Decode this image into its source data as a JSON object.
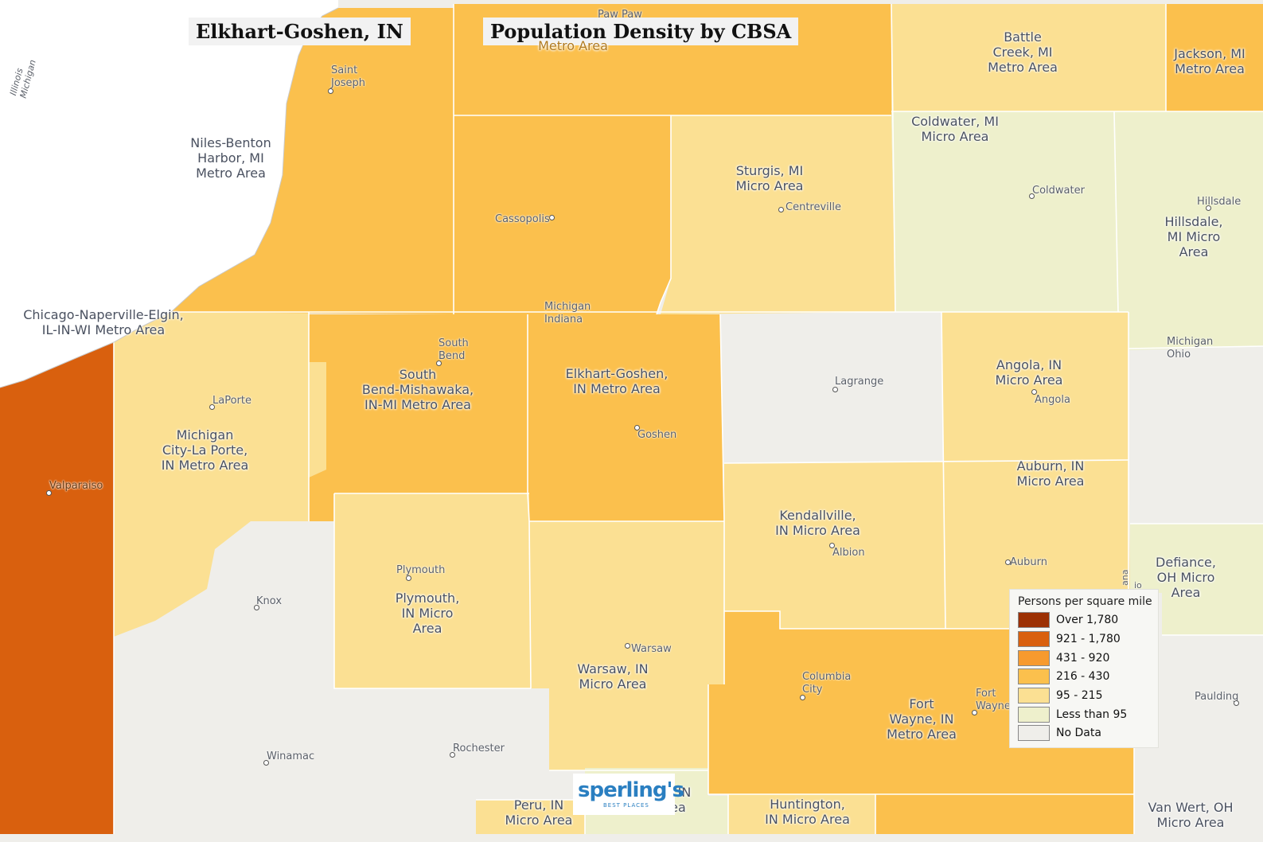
{
  "titles": {
    "region": "Elkhart-Goshen, IN",
    "map": "Population Density by CBSA"
  },
  "colors": {
    "over_1780": "#9c3003",
    "d921_1780": "#d9600e",
    "d431_920": "#f79a2e",
    "d216_430": "#fbc04d",
    "d95_215": "#fbe093",
    "lt95": "#eef0cc",
    "nodata": "#efeeea",
    "lake": "#ffffff"
  },
  "legend": {
    "title": "Persons per square mile",
    "items": [
      {
        "label": "Over 1,780",
        "color": "#9c3003"
      },
      {
        "label": "921 - 1,780",
        "color": "#d9600e"
      },
      {
        "label": "431 - 920",
        "color": "#f79a2e"
      },
      {
        "label": "216 - 430",
        "color": "#fbc04d"
      },
      {
        "label": "95 - 215",
        "color": "#fbe093"
      },
      {
        "label": "Less than 95",
        "color": "#eef0cc"
      },
      {
        "label": "No Data",
        "color": "#efeeea"
      }
    ]
  },
  "areas": {
    "niles": "Niles-Benton\nHarbor, MI\nMetro Area",
    "chicago": "Chicago-Naperville-Elgin,\nIL-IN-WI Metro Area",
    "battle_creek": "Battle\nCreek, MI\nMetro Area",
    "jackson": "Jackson, MI\nMetro Area",
    "coldwater": "Coldwater, MI\nMicro Area",
    "sturgis": "Sturgis, MI\nMicro Area",
    "hillsdale": "Hillsdale,\nMI Micro\nArea",
    "south_bend": "South\nBend-Mishawaka,\nIN-MI Metro Area",
    "elkhart": "Elkhart-Goshen,\nIN Metro Area",
    "angola": "Angola, IN\nMicro Area",
    "michigan_city": "Michigan\nCity-La Porte,\nIN Metro Area",
    "auburn": "Auburn, IN\nMicro Area",
    "kendallville": "Kendallville,\nIN Micro Area",
    "defiance": "Defiance,\nOH Micro\nArea",
    "plymouth": "Plymouth,\nIN Micro\nArea",
    "warsaw": "Warsaw, IN\nMicro Area",
    "fort_wayne": "Fort\nWayne, IN\nMetro Area",
    "peru": "Peru, IN\nMicro Area",
    "huntington": "Huntington,\nIN Micro Area",
    "van_wert": "Van Wert, OH\nMicro Area",
    "wabash_partial": "IN",
    "wabash_partial2": "ea",
    "kalamazoo_partial": "Metro Area"
  },
  "cities": {
    "paw_paw": "Paw Paw",
    "saint_joseph": "Saint\nJoseph",
    "cassopolis": "Cassopolis",
    "centreville": "Centreville",
    "coldwater": "Coldwater",
    "hillsdale": "Hillsdale",
    "south_bend": "South\nBend",
    "laporte": "LaPorte",
    "goshen": "Goshen",
    "lagrange": "Lagrange",
    "angola": "Angola",
    "valparaiso": "Valparaiso",
    "albion": "Albion",
    "auburn": "Auburn",
    "plymouth": "Plymouth",
    "knox": "Knox",
    "warsaw": "Warsaw",
    "columbia_city": "Columbia\nCity",
    "fort_wayne": "Fort\nWayne",
    "paulding": "Paulding",
    "rochester": "Rochester",
    "winamac": "Winamac"
  },
  "borders": {
    "illinois_michigan": "Illinois\nMichigan",
    "michigan_indiana": "Michigan\nIndiana",
    "michigan_ohio": "Michigan\nOhio",
    "indiana_ohio_a": "ana",
    "indiana_ohio_b": "io"
  },
  "logo": {
    "brand": "sperling's",
    "tagline": "BEST PLACES"
  }
}
